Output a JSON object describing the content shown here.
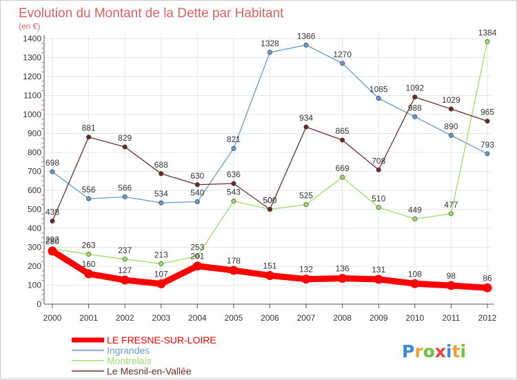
{
  "chart_data": {
    "type": "line",
    "title": "Evolution du Montant de la Dette par Habitant",
    "subtitle": "(en €)",
    "x": [
      "2000",
      "2001",
      "2002",
      "2003",
      "2004",
      "2005",
      "2006",
      "2007",
      "2008",
      "2009",
      "2010",
      "2011",
      "2012"
    ],
    "yticks": [
      "0",
      "100",
      "200",
      "300",
      "400",
      "500",
      "600",
      "700",
      "800",
      "900",
      "1000",
      "1100",
      "1200",
      "1300",
      "1400"
    ],
    "ylim": [
      0,
      1400
    ],
    "grid": true,
    "legend_position": "bottom-left",
    "series": [
      {
        "name": "LE FRESNE-SUR-LOIRE",
        "color": "#ff0000",
        "values": [
          280,
          160,
          127,
          107,
          201,
          178,
          151,
          132,
          136,
          131,
          108,
          98,
          86
        ],
        "labels": [
          "280",
          "160",
          "127",
          "107",
          "201",
          "178",
          "151",
          "132",
          "136",
          "131",
          "108",
          "98",
          "86"
        ]
      },
      {
        "name": "Ingrandes",
        "color": "#6699cc",
        "values": [
          698,
          556,
          566,
          534,
          540,
          821,
          1328,
          1366,
          1270,
          1085,
          988,
          890,
          793
        ],
        "labels": [
          "698",
          "556",
          "566",
          "534",
          "540",
          "821",
          "1328",
          "1366",
          "1270",
          "1085",
          "988",
          "890",
          "793"
        ]
      },
      {
        "name": "Montrelais",
        "color": "#99dd66",
        "values": [
          292,
          263,
          237,
          213,
          253,
          543,
          500,
          525,
          669,
          510,
          449,
          477,
          1384
        ],
        "labels": [
          "292",
          "263",
          "237",
          "213",
          "253",
          "543",
          "500",
          "525",
          "669",
          "510",
          "449",
          "477",
          "1384"
        ]
      },
      {
        "name": "Le Mesnil-en-Vallée",
        "color": "#6e2a2a",
        "values": [
          438,
          881,
          829,
          688,
          630,
          636,
          500,
          934,
          865,
          708,
          1092,
          1029,
          965
        ],
        "labels": [
          "438",
          "881",
          "829",
          "688",
          "630",
          "636",
          "500",
          "934",
          "865",
          "708",
          "1092",
          "1029",
          "965"
        ]
      }
    ]
  },
  "logo": {
    "text": "Proxiti",
    "letters": [
      "P",
      "r",
      "o",
      "x",
      "i",
      "t",
      "i"
    ],
    "colors": [
      "#3b8bd6",
      "#f0a030",
      "#70c040",
      "#e84040",
      "#3b8bd6",
      "#f0a030",
      "#70c040"
    ]
  }
}
